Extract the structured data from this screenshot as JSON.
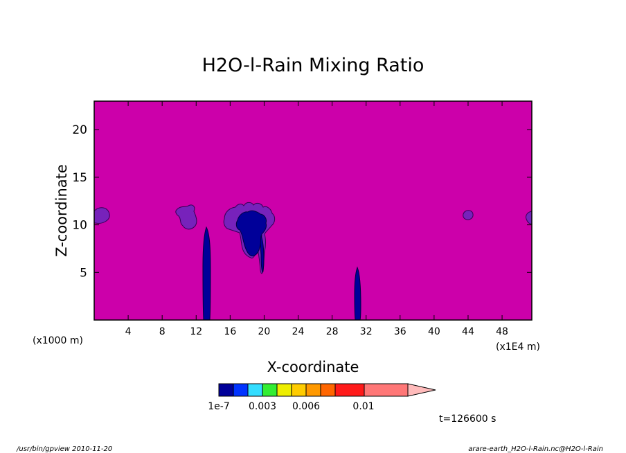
{
  "chart_data": {
    "type": "heatmap",
    "title": "H2O-l-Rain Mixing Ratio",
    "xlabel": "X-coordinate",
    "ylabel": "Z-coordinate",
    "x_unit_left": "(x1000 m)",
    "x_unit_right": "(x1E4 m)",
    "xlim": [
      0,
      51.5
    ],
    "ylim": [
      0,
      23
    ],
    "x_ticks": [
      4,
      8,
      12,
      16,
      20,
      24,
      28,
      32,
      36,
      40,
      44,
      48
    ],
    "y_ticks": [
      5,
      10,
      15,
      20
    ],
    "background_level_color": "#cc00aa",
    "colorbar": {
      "colors": [
        "#000099",
        "#0033ff",
        "#33ddff",
        "#33ee33",
        "#eeee00",
        "#ffcc00",
        "#ff9900",
        "#ff6600",
        "#ff1a1a",
        "#ff7777"
      ],
      "extend_color": "#ffbbbb",
      "labels": [
        "1e-7",
        "0.003",
        "0.006",
        "0.01"
      ]
    },
    "features": [
      {
        "name": "cloud cluster",
        "x": [
          15.5,
          21.5
        ],
        "z": [
          6.5,
          12.5
        ],
        "level": "1e-7"
      },
      {
        "name": "rain shaft",
        "x": [
          12.9,
          13.8
        ],
        "z": [
          0,
          9.8
        ],
        "level": "1e-7"
      },
      {
        "name": "rain shaft",
        "x": [
          30.4,
          31.2
        ],
        "z": [
          0,
          5.5
        ],
        "level": "1e-7"
      },
      {
        "name": "small cell",
        "x": [
          9.8,
          12.2
        ],
        "z": [
          9.5,
          12.1
        ],
        "level": "low"
      },
      {
        "name": "small cell",
        "x": [
          0,
          1.8
        ],
        "z": [
          10.2,
          11.8
        ],
        "level": "low"
      },
      {
        "name": "small cell",
        "x": [
          43.2,
          44.2
        ],
        "z": [
          10.6,
          11.6
        ],
        "level": "low"
      },
      {
        "name": "small cell",
        "x": [
          50.8,
          51.5
        ],
        "z": [
          10.2,
          11.5
        ],
        "level": "low"
      }
    ],
    "time_label": "t=126600 s"
  },
  "footer": {
    "left": "/usr/bin/gpview  2010-11-20",
    "right": "arare-earth_H2O-l-Rain.nc@H2O-l-Rain"
  }
}
